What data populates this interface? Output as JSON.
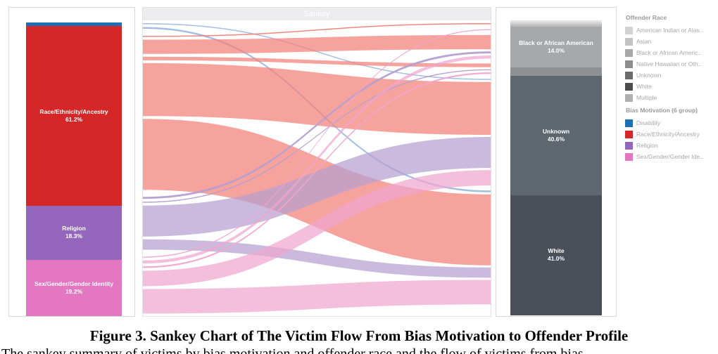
{
  "chart_data": {
    "type": "sankey",
    "title": "",
    "header_label": "Sankey",
    "source_nodes": [
      {
        "name": "Disability",
        "share": 0.013,
        "color": "#1f6fb5"
      },
      {
        "name": "Race/Ethnicity/Ancestry",
        "label_line1": "Race/Ethnicity/Ancestry",
        "label_line2": "61.2%",
        "share": 0.612,
        "color": "#d62728"
      },
      {
        "name": "Religion",
        "label_line1": "Religion",
        "label_line2": "18.3%",
        "share": 0.183,
        "color": "#9467bd"
      },
      {
        "name": "Sex/Gender/Gender Identity",
        "label_line1": "Sex/Gender/Gender Identity",
        "label_line2": "19.2%",
        "share": 0.192,
        "color": "#e377c2"
      }
    ],
    "target_nodes": [
      {
        "name": "American Indian or Alaska Native",
        "share": 0.008,
        "color": "#cfcfcf"
      },
      {
        "name": "Asian",
        "share": 0.006,
        "color": "#bdbdbd"
      },
      {
        "name": "Black or African American",
        "label_line1": "Black or African American",
        "label_line2": "14.0%",
        "share": 0.14,
        "color": "#a6a8aa"
      },
      {
        "name": "Native Hawaiian or Other Pacific Islander",
        "share": 0.028,
        "color": "#8e9194"
      },
      {
        "name": "Unknown",
        "label_line1": "Unknown",
        "label_line2": "40.6%",
        "share": 0.406,
        "color": "#5e6670"
      },
      {
        "name": "White",
        "label_line1": "White",
        "label_line2": "41.0%",
        "share": 0.41,
        "color": "#4a4f5a"
      }
    ],
    "links": [
      {
        "source": "Disability",
        "target": "Unknown",
        "value": 0.004
      },
      {
        "source": "Disability",
        "target": "White",
        "value": 0.007
      },
      {
        "source": "Race/Ethnicity/Ancestry",
        "target": "American Indian or Alaska Native",
        "value": 0.004
      },
      {
        "source": "Race/Ethnicity/Ancestry",
        "target": "Black or African American",
        "value": 0.055
      },
      {
        "source": "Race/Ethnicity/Ancestry",
        "target": "Native Hawaiian or Other Pacific Islander",
        "value": 0.014
      },
      {
        "source": "Race/Ethnicity/Ancestry",
        "target": "Unknown",
        "value": 0.205
      },
      {
        "source": "Race/Ethnicity/Ancestry",
        "target": "White",
        "value": 0.275
      },
      {
        "source": "Religion",
        "target": "Black or African American",
        "value": 0.008
      },
      {
        "source": "Religion",
        "target": "Native Hawaiian or Other Pacific Islander",
        "value": 0.004
      },
      {
        "source": "Religion",
        "target": "Unknown",
        "value": 0.12
      },
      {
        "source": "Religion",
        "target": "White",
        "value": 0.04
      },
      {
        "source": "Sex/Gender/Gender Identity",
        "target": "Asian",
        "value": 0.003
      },
      {
        "source": "Sex/Gender/Gender Identity",
        "target": "Black or African American",
        "value": 0.012
      },
      {
        "source": "Sex/Gender/Gender Identity",
        "target": "Native Hawaiian or Other Pacific Islander",
        "value": 0.006
      },
      {
        "source": "Sex/Gender/Gender Identity",
        "target": "Unknown",
        "value": 0.06
      },
      {
        "source": "Sex/Gender/Gender Identity",
        "target": "White",
        "value": 0.095
      }
    ]
  },
  "legend": {
    "groups": [
      {
        "title": "Offender Race",
        "items": [
          {
            "label": "American Indian or Alas..",
            "color": "#d3d3d3"
          },
          {
            "label": "Asian",
            "color": "#c2c2c2"
          },
          {
            "label": "Black or African Americ..",
            "color": "#a8a8a8"
          },
          {
            "label": "Native Hawaiian or Oth..",
            "color": "#8e8e8e"
          },
          {
            "label": "Unknown",
            "color": "#6c6c6c"
          },
          {
            "label": "White",
            "color": "#4d4d4d"
          },
          {
            "label": "Multiple",
            "color": "#b0b0b0"
          }
        ]
      },
      {
        "title": "Bias Motivation (6 group)",
        "items": [
          {
            "label": "Disability",
            "color": "#1f6fb5"
          },
          {
            "label": "Race/Ethnicity/Ancestry",
            "color": "#d62728"
          },
          {
            "label": "Religion",
            "color": "#9467bd"
          },
          {
            "label": "Sex/Gender/Gender Ide..",
            "color": "#e377c2"
          }
        ]
      }
    ]
  },
  "caption": "Figure 3. Sankey Chart of The Victim Flow From Bias Motivation to Offender Profile",
  "body_snippet": "The sankey summary of victims by bias motivation and offender race and the flow of victims from bias"
}
